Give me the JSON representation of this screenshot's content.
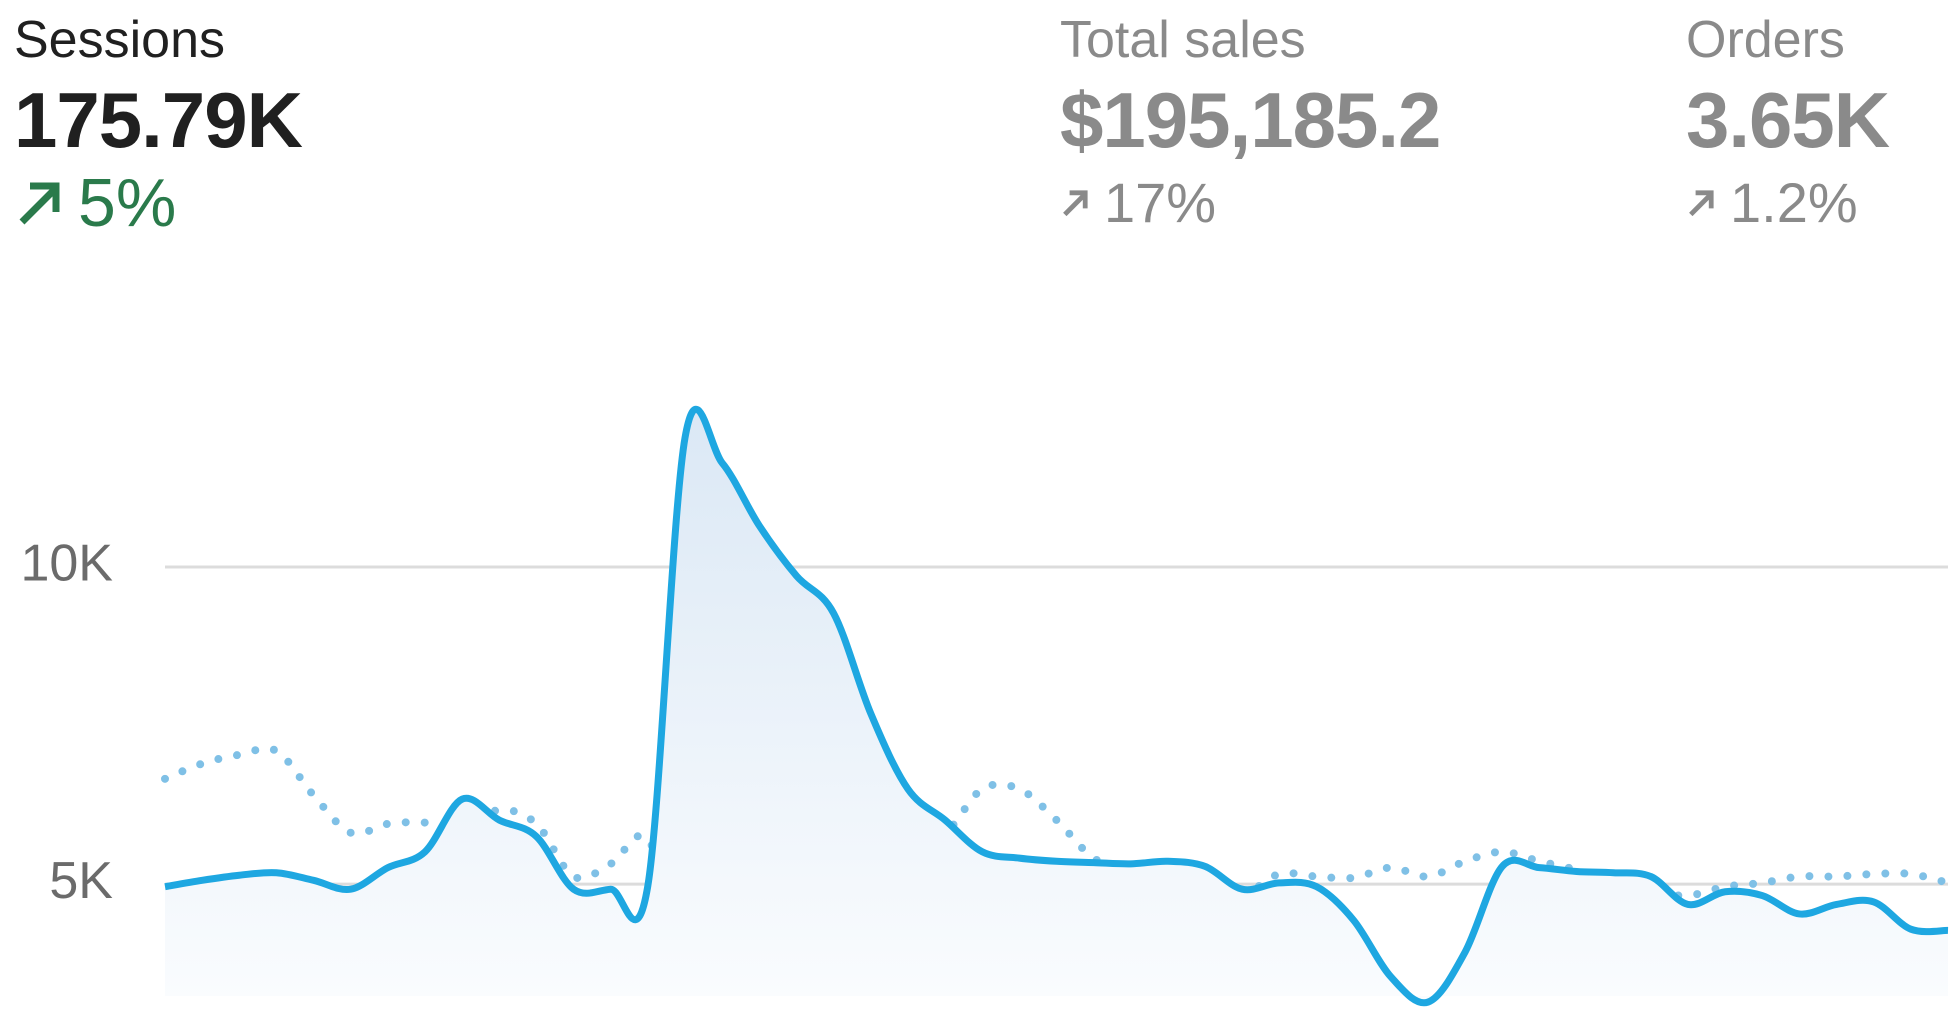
{
  "metrics": [
    {
      "label": "Sessions",
      "value": "175.79K",
      "change": "5%"
    },
    {
      "label": "Total sales",
      "value": "$195,185.2",
      "change": "17%"
    },
    {
      "label": "Orders",
      "value": "3.65K",
      "change": "1.2%"
    }
  ],
  "chart_data": {
    "type": "line",
    "categories": [
      null,
      null,
      null,
      null,
      null,
      null,
      null,
      null,
      null,
      null,
      null,
      null,
      null,
      null,
      null,
      null,
      null,
      null,
      null,
      null,
      null,
      null,
      null,
      null,
      null,
      null,
      null,
      null,
      null,
      null,
      null,
      null,
      null,
      null,
      null,
      null,
      null,
      null,
      null,
      null,
      null,
      null,
      null,
      null,
      null,
      null,
      null,
      null,
      null
    ],
    "series": [
      {
        "color": "#1ea7e1",
        "style": "solid",
        "values": [
          4960,
          5060,
          5140,
          5180,
          5060,
          4920,
          5260,
          5510,
          6340,
          6010,
          5750,
          4920,
          4920,
          4980,
          12040,
          11640,
          10650,
          9860,
          9270,
          7690,
          6500,
          6010,
          5510,
          5410,
          5360,
          5340,
          5320,
          5360,
          5280,
          4920,
          5020,
          4960,
          4430,
          3540,
          3140,
          3930,
          5280,
          5260,
          5200,
          5180,
          5120,
          4680,
          4880,
          4820,
          4530,
          4680,
          4720,
          4290,
          4270
        ]
      },
      {
        "color": "#7fc0e6",
        "style": "dotted",
        "values": [
          6660,
          6900,
          7040,
          7100,
          6400,
          5810,
          5950,
          5970,
          5870,
          6170,
          5950,
          5120,
          5320,
          5710,
          3930,
          3770,
          3770,
          4530,
          5510,
          6110,
          5750,
          5810,
          6500,
          6500,
          6010,
          5410,
          5220,
          5000,
          5020,
          4840,
          5160,
          5120,
          5100,
          5260,
          5120,
          5360,
          5510,
          5360,
          5220,
          4960,
          4880,
          4820,
          4960,
          5020,
          5120,
          5120,
          5160,
          5160,
          5020
        ]
      }
    ],
    "ylim": [
      3000,
      13200
    ],
    "yticks": [
      {
        "value": 5000,
        "label": "5K"
      },
      {
        "value": 10000,
        "label": "10K"
      }
    ],
    "grid": true
  }
}
